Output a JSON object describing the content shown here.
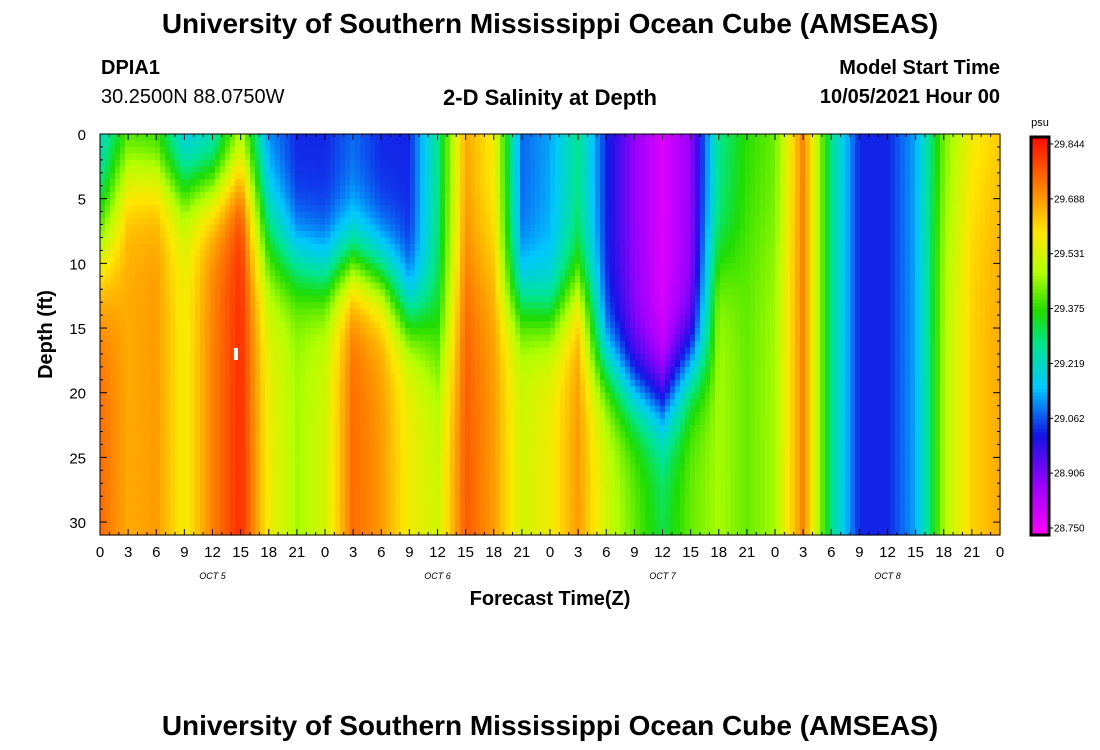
{
  "header": {
    "main_title": "University of Southern Mississippi Ocean Cube (AMSEAS)",
    "station_id": "DPIA1",
    "station_coords": "30.2500N  88.0750W",
    "plot_title": "2-D Salinity at Depth",
    "model_start_label": "Model Start Time",
    "model_start_value": "10/05/2021 Hour 00"
  },
  "footer": {
    "title": "University of Southern Mississippi Ocean Cube (AMSEAS)"
  },
  "chart_data": {
    "type": "heatmap",
    "title": "2-D Salinity at Depth",
    "xlabel": "Forecast Time(Z)",
    "ylabel": "Depth (ft)",
    "x_hours": [
      0,
      96
    ],
    "x_tick_labels": [
      "0",
      "3",
      "6",
      "9",
      "12",
      "15",
      "18",
      "21",
      "0",
      "3",
      "6",
      "9",
      "12",
      "15",
      "18",
      "21",
      "0",
      "3",
      "6",
      "9",
      "12",
      "15",
      "18",
      "21",
      "0",
      "3",
      "6",
      "9",
      "12",
      "15",
      "18",
      "21",
      "0"
    ],
    "day_labels": [
      "OCT 5",
      "OCT 6",
      "OCT 7",
      "OCT 8"
    ],
    "ylim": [
      0,
      31
    ],
    "y_ticks": [
      0,
      5,
      10,
      15,
      20,
      25,
      30
    ],
    "colorbar": {
      "unit": "psu",
      "levels": [
        29.844,
        29.688,
        29.531,
        29.375,
        29.219,
        29.062,
        28.906,
        28.75
      ],
      "range": [
        28.75,
        29.9
      ]
    },
    "columns": [
      {
        "hour": 0,
        "surface": 29.2,
        "bottom": 29.78,
        "transition_depth": 8,
        "width": 3
      },
      {
        "hour": 3,
        "surface": 29.38,
        "bottom": 29.7,
        "transition_depth": 3,
        "width": 2
      },
      {
        "hour": 6,
        "surface": 29.35,
        "bottom": 29.72,
        "transition_depth": 3,
        "width": 2
      },
      {
        "hour": 9,
        "surface": 29.15,
        "bottom": 29.6,
        "transition_depth": 4,
        "width": 2
      },
      {
        "hour": 12,
        "surface": 29.2,
        "bottom": 29.75,
        "transition_depth": 4,
        "width": 2
      },
      {
        "hour": 15,
        "surface": 29.45,
        "bottom": 29.86,
        "transition_depth": 3,
        "width": 2
      },
      {
        "hour": 18,
        "surface": 29.1,
        "bottom": 29.6,
        "transition_depth": 8,
        "width": 3
      },
      {
        "hour": 21,
        "surface": 29.05,
        "bottom": 29.5,
        "transition_depth": 10,
        "width": 2
      },
      {
        "hour": 24,
        "surface": 29.05,
        "bottom": 29.55,
        "transition_depth": 11,
        "width": 2
      },
      {
        "hour": 27,
        "surface": 29.1,
        "bottom": 29.78,
        "transition_depth": 10,
        "width": 2
      },
      {
        "hour": 30,
        "surface": 29.05,
        "bottom": 29.72,
        "transition_depth": 11,
        "width": 2
      },
      {
        "hour": 33,
        "surface": 29.05,
        "bottom": 29.6,
        "transition_depth": 14,
        "width": 2
      },
      {
        "hour": 36,
        "surface": 29.3,
        "bottom": 29.55,
        "transition_depth": 16,
        "width": 3
      },
      {
        "hour": 39,
        "surface": 29.7,
        "bottom": 29.8,
        "transition_depth": 10,
        "width": 3
      },
      {
        "hour": 42,
        "surface": 29.6,
        "bottom": 29.72,
        "transition_depth": 10,
        "width": 3
      },
      {
        "hour": 45,
        "surface": 29.1,
        "bottom": 29.55,
        "transition_depth": 13,
        "width": 2
      },
      {
        "hour": 48,
        "surface": 29.15,
        "bottom": 29.6,
        "transition_depth": 14,
        "width": 2
      },
      {
        "hour": 51,
        "surface": 29.3,
        "bottom": 29.72,
        "transition_depth": 12,
        "width": 2
      },
      {
        "hour": 54,
        "surface": 29.05,
        "bottom": 29.55,
        "transition_depth": 18,
        "width": 2
      },
      {
        "hour": 57,
        "surface": 28.9,
        "bottom": 29.45,
        "transition_depth": 20,
        "width": 2
      },
      {
        "hour": 60,
        "surface": 28.8,
        "bottom": 29.35,
        "transition_depth": 21,
        "width": 2
      },
      {
        "hour": 63,
        "surface": 28.9,
        "bottom": 29.45,
        "transition_depth": 18,
        "width": 2
      },
      {
        "hour": 66,
        "surface": 29.3,
        "bottom": 29.5,
        "transition_depth": 10,
        "width": 2
      },
      {
        "hour": 69,
        "surface": 29.4,
        "bottom": 29.45,
        "transition_depth": 8,
        "width": 3
      },
      {
        "hour": 72,
        "surface": 29.45,
        "bottom": 29.5,
        "transition_depth": 8,
        "width": 3
      },
      {
        "hour": 75,
        "surface": 29.75,
        "bottom": 29.75,
        "transition_depth": 5,
        "width": 3
      },
      {
        "hour": 78,
        "surface": 29.3,
        "bottom": 29.3,
        "transition_depth": 5,
        "width": 3
      },
      {
        "hour": 81,
        "surface": 29.05,
        "bottom": 29.05,
        "transition_depth": 5,
        "width": 3
      },
      {
        "hour": 84,
        "surface": 29.05,
        "bottom": 29.05,
        "transition_depth": 5,
        "width": 3
      },
      {
        "hour": 87,
        "surface": 29.15,
        "bottom": 29.15,
        "transition_depth": 5,
        "width": 3
      },
      {
        "hour": 90,
        "surface": 29.45,
        "bottom": 29.5,
        "transition_depth": 5,
        "width": 3
      },
      {
        "hour": 93,
        "surface": 29.6,
        "bottom": 29.65,
        "transition_depth": 5,
        "width": 3
      },
      {
        "hour": 96,
        "surface": 29.65,
        "bottom": 29.7,
        "transition_depth": 5,
        "width": 3
      }
    ],
    "marker": {
      "hour": 14.5,
      "depth": 17
    }
  }
}
